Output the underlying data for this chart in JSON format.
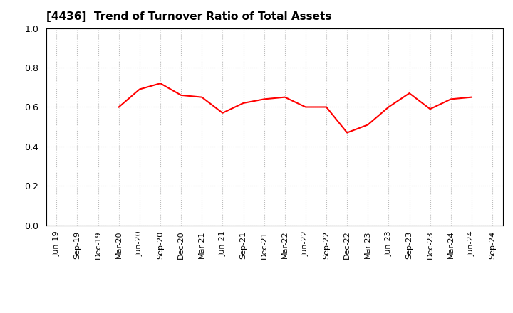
{
  "title": "[4436]  Trend of Turnover Ratio of Total Assets",
  "line_color": "#ff0000",
  "line_width": 1.5,
  "background_color": "#ffffff",
  "grid_color": "#bbbbbb",
  "ylim": [
    0.0,
    1.0
  ],
  "yticks": [
    0.0,
    0.2,
    0.4,
    0.6,
    0.8,
    1.0
  ],
  "x_labels": [
    "Jun-19",
    "Sep-19",
    "Dec-19",
    "Mar-20",
    "Jun-20",
    "Sep-20",
    "Dec-20",
    "Mar-21",
    "Jun-21",
    "Sep-21",
    "Dec-21",
    "Mar-22",
    "Jun-22",
    "Sep-22",
    "Dec-22",
    "Mar-23",
    "Jun-23",
    "Sep-23",
    "Dec-23",
    "Mar-24",
    "Jun-24",
    "Sep-24"
  ],
  "data_x_labels": [
    "Mar-20",
    "Jun-20",
    "Sep-20",
    "Dec-20",
    "Mar-21",
    "Jun-21",
    "Sep-21",
    "Dec-21",
    "Mar-22",
    "Jun-22",
    "Sep-22",
    "Dec-22",
    "Mar-23",
    "Jun-23",
    "Sep-23",
    "Dec-23",
    "Mar-24",
    "Jun-24"
  ],
  "data_values": [
    0.6,
    0.69,
    0.72,
    0.66,
    0.65,
    0.57,
    0.62,
    0.64,
    0.65,
    0.6,
    0.6,
    0.47,
    0.51,
    0.6,
    0.67,
    0.59,
    0.64,
    0.65
  ],
  "title_fontsize": 11,
  "tick_fontsize": 8,
  "ytick_fontsize": 9
}
